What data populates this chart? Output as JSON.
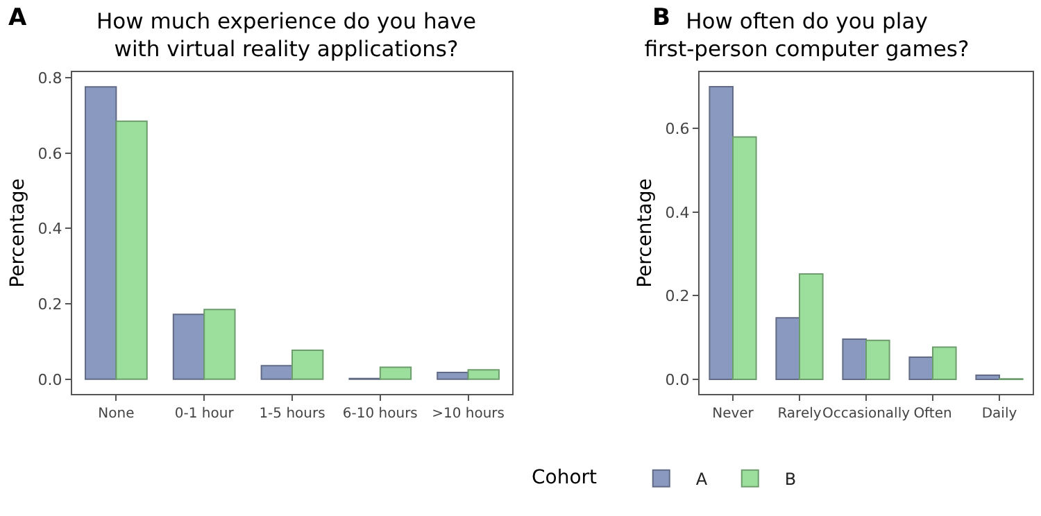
{
  "chart_data": [
    {
      "type": "bar",
      "title": "How much experience do you have\nwith virtual reality applications?",
      "ylabel": "Percentage",
      "annotations": [
        "A"
      ],
      "categories": [
        "None",
        "0-1 hour",
        "1-5 hours",
        "6-10 hours",
        ">10 hours"
      ],
      "series": [
        {
          "color": "#8a99bf",
          "values": [
            0.776,
            0.172,
            0.036,
            0.002,
            0.018
          ]
        },
        {
          "color": "#9cdf9c",
          "values": [
            0.685,
            0.185,
            0.077,
            0.032,
            0.025
          ]
        }
      ],
      "ylim": [
        -0.039,
        0.815
      ],
      "yticks": [
        {
          "value": 0,
          "label": "0.0"
        },
        0.2,
        0.4,
        0.6,
        0.8
      ],
      "grid": false
    },
    {
      "type": "bar",
      "title": "How often do you play\nfirst-person computer games?",
      "ylabel": "Percentage",
      "annotations": [
        "B"
      ],
      "legend": "bottom",
      "legend_title": "Cohort",
      "categories": [
        "Never",
        "Rarely",
        "Occasionally",
        "Often",
        "Daily"
      ],
      "series": [
        {
          "name": "A",
          "color": "#8a99bf",
          "values": [
            0.7,
            0.147,
            0.096,
            0.053,
            0.01
          ]
        },
        {
          "name": "B",
          "color": "#9cdf9c",
          "values": [
            0.58,
            0.252,
            0.093,
            0.077,
            0.001
          ]
        }
      ],
      "ylim": [
        -0.035,
        0.735
      ],
      "yticks": [
        {
          "value": 0,
          "label": "0.0"
        },
        0.2,
        0.4,
        0.6
      ],
      "grid": false
    }
  ]
}
